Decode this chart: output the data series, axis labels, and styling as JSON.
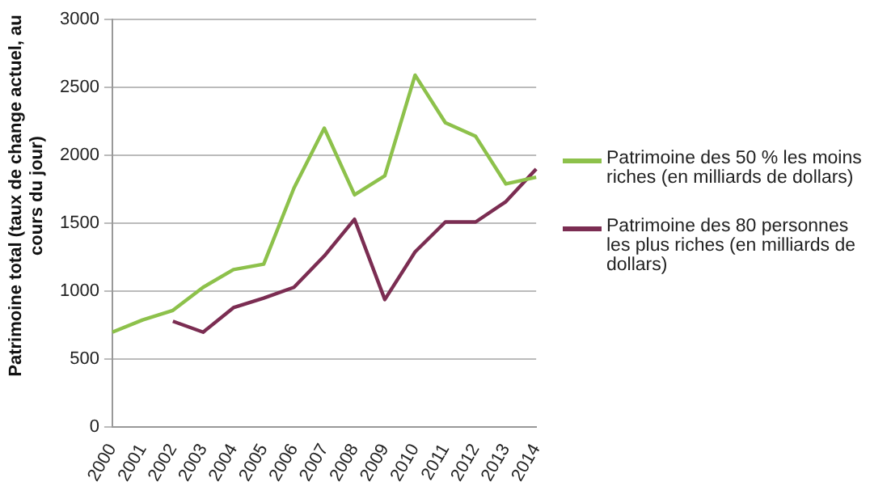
{
  "chart_data": {
    "type": "line",
    "ylabel": "Patrimoine total (taux de change actuel, au cours du jour)",
    "categories": [
      "2000",
      "2001",
      "2002",
      "2003",
      "2004",
      "2005",
      "2006",
      "2007",
      "2008",
      "2009",
      "2010",
      "2011",
      "2012",
      "2013",
      "2014"
    ],
    "series": [
      {
        "name": "Patrimoine des 50 % les moins riches (en milliards de dollars)",
        "color": "#8dc14b",
        "values": [
          700,
          790,
          860,
          1030,
          1160,
          1200,
          1760,
          2200,
          1710,
          1850,
          2590,
          2240,
          2140,
          1790,
          1840
        ]
      },
      {
        "name": "Patrimoine des 80 personnes les plus riches (en milliards de dollars)",
        "color": "#7b2d52",
        "values": [
          null,
          null,
          780,
          700,
          880,
          950,
          1030,
          1260,
          1530,
          940,
          1290,
          1510,
          1510,
          1660,
          1900
        ]
      }
    ],
    "ylim": [
      0,
      3000
    ],
    "yticks": [
      0,
      500,
      1000,
      1500,
      2000,
      2500,
      3000
    ],
    "grid": "y",
    "legend": "right",
    "marker": "none",
    "line_style": "solid"
  }
}
